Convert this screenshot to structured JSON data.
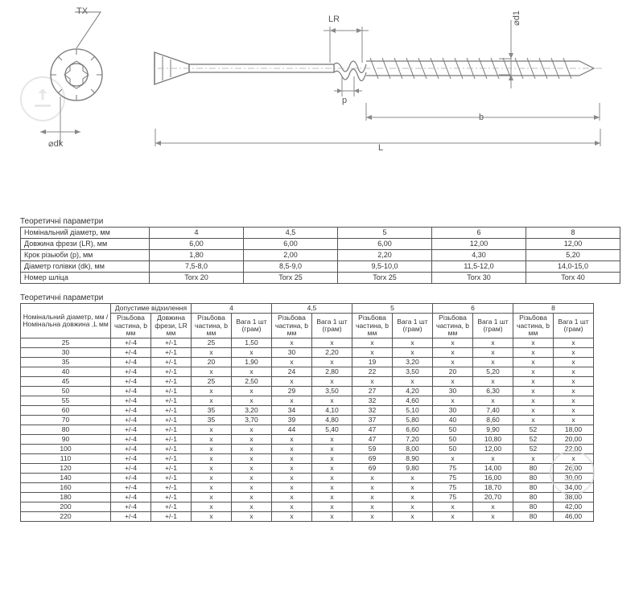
{
  "diagram": {
    "labels": {
      "tx": "TX",
      "lr": "LR",
      "d1": "⌀d1",
      "dk": "⌀dk",
      "p": "p",
      "b": "b",
      "L": "L"
    }
  },
  "table1": {
    "title": "Теоретичні параметри",
    "rows": [
      {
        "label": "Номінальний діаметр, мм",
        "v": [
          "4",
          "4,5",
          "5",
          "6",
          "8"
        ]
      },
      {
        "label": "Довжина фрези (LR), мм",
        "v": [
          "6,00",
          "6,00",
          "6,00",
          "12,00",
          "12,00"
        ]
      },
      {
        "label": "Крок різьюби (p), мм",
        "v": [
          "1,80",
          "2,00",
          "2,20",
          "4,30",
          "5,20"
        ]
      },
      {
        "label": "Діаметр голівки (dk), мм",
        "v": [
          "7,5-8,0",
          "8,5-9,0",
          "9,5-10,0",
          "11,5-12,0",
          "14,0-15,0"
        ]
      },
      {
        "label": "Номер шліца",
        "v": [
          "Torx 20",
          "Torx 25",
          "Torx 25",
          "Torx 30",
          "Torx 40"
        ]
      }
    ]
  },
  "table2": {
    "title": "Теоретичні параметри",
    "header": {
      "nom": "Номінальний діаметр, мм / Номінальна довжина ,L мм",
      "tol_group": "Допустиме відхилення",
      "tol1": "Різьбова частина, b мм",
      "tol2": "Довжина фрези, LR мм",
      "diam_headers": [
        "4",
        "4,5",
        "5",
        "6",
        "8"
      ],
      "sub1": "Різьбова частина, b мм",
      "sub2": "Вага 1 шт (грам)"
    },
    "rows": [
      {
        "l": "25",
        "t": [
          "+/-4",
          "+/-1"
        ],
        "d": [
          [
            "25",
            "1,50"
          ],
          [
            "x",
            "x"
          ],
          [
            "x",
            "x"
          ],
          [
            "x",
            "x"
          ],
          [
            "x",
            "x"
          ]
        ]
      },
      {
        "l": "30",
        "t": [
          "+/-4",
          "+/-1"
        ],
        "d": [
          [
            "x",
            "x"
          ],
          [
            "30",
            "2,20"
          ],
          [
            "x",
            "x"
          ],
          [
            "x",
            "x"
          ],
          [
            "x",
            "x"
          ]
        ]
      },
      {
        "l": "35",
        "t": [
          "+/-4",
          "+/-1"
        ],
        "d": [
          [
            "20",
            "1,90"
          ],
          [
            "x",
            "x"
          ],
          [
            "19",
            "3,20"
          ],
          [
            "x",
            "x"
          ],
          [
            "x",
            "x"
          ]
        ]
      },
      {
        "l": "40",
        "t": [
          "+/-4",
          "+/-1"
        ],
        "d": [
          [
            "x",
            "x"
          ],
          [
            "24",
            "2,80"
          ],
          [
            "22",
            "3,50"
          ],
          [
            "20",
            "5,20"
          ],
          [
            "x",
            "x"
          ]
        ]
      },
      {
        "l": "45",
        "t": [
          "+/-4",
          "+/-1"
        ],
        "d": [
          [
            "25",
            "2,50"
          ],
          [
            "x",
            "x"
          ],
          [
            "x",
            "x"
          ],
          [
            "x",
            "x"
          ],
          [
            "x",
            "x"
          ]
        ]
      },
      {
        "l": "50",
        "t": [
          "+/-4",
          "+/-1"
        ],
        "d": [
          [
            "x",
            "x"
          ],
          [
            "29",
            "3,50"
          ],
          [
            "27",
            "4,20"
          ],
          [
            "30",
            "6,30"
          ],
          [
            "x",
            "x"
          ]
        ]
      },
      {
        "l": "55",
        "t": [
          "+/-4",
          "+/-1"
        ],
        "d": [
          [
            "x",
            "x"
          ],
          [
            "x",
            "x"
          ],
          [
            "32",
            "4,60"
          ],
          [
            "x",
            "x"
          ],
          [
            "x",
            "x"
          ]
        ]
      },
      {
        "l": "60",
        "t": [
          "+/-4",
          "+/-1"
        ],
        "d": [
          [
            "35",
            "3,20"
          ],
          [
            "34",
            "4,10"
          ],
          [
            "32",
            "5,10"
          ],
          [
            "30",
            "7,40"
          ],
          [
            "x",
            "x"
          ]
        ]
      },
      {
        "l": "70",
        "t": [
          "+/-4",
          "+/-1"
        ],
        "d": [
          [
            "35",
            "3,70"
          ],
          [
            "39",
            "4,80"
          ],
          [
            "37",
            "5,80"
          ],
          [
            "40",
            "8,60"
          ],
          [
            "x",
            "x"
          ]
        ]
      },
      {
        "l": "80",
        "t": [
          "+/-4",
          "+/-1"
        ],
        "d": [
          [
            "x",
            "x"
          ],
          [
            "44",
            "5,40"
          ],
          [
            "47",
            "6,60"
          ],
          [
            "50",
            "9,90"
          ],
          [
            "52",
            "18,00"
          ]
        ]
      },
      {
        "l": "90",
        "t": [
          "+/-4",
          "+/-1"
        ],
        "d": [
          [
            "x",
            "x"
          ],
          [
            "x",
            "x"
          ],
          [
            "47",
            "7,20"
          ],
          [
            "50",
            "10,80"
          ],
          [
            "52",
            "20,00"
          ]
        ]
      },
      {
        "l": "100",
        "t": [
          "+/-4",
          "+/-1"
        ],
        "d": [
          [
            "x",
            "x"
          ],
          [
            "x",
            "x"
          ],
          [
            "59",
            "8,00"
          ],
          [
            "50",
            "12,00"
          ],
          [
            "52",
            "22,00"
          ]
        ]
      },
      {
        "l": "110",
        "t": [
          "+/-4",
          "+/-1"
        ],
        "d": [
          [
            "x",
            "x"
          ],
          [
            "x",
            "x"
          ],
          [
            "69",
            "8,90"
          ],
          [
            "x",
            "x"
          ],
          [
            "x",
            "x"
          ]
        ]
      },
      {
        "l": "120",
        "t": [
          "+/-4",
          "+/-1"
        ],
        "d": [
          [
            "x",
            "x"
          ],
          [
            "x",
            "x"
          ],
          [
            "69",
            "9,80"
          ],
          [
            "75",
            "14,00"
          ],
          [
            "80",
            "26,00"
          ]
        ]
      },
      {
        "l": "140",
        "t": [
          "+/-4",
          "+/-1"
        ],
        "d": [
          [
            "x",
            "x"
          ],
          [
            "x",
            "x"
          ],
          [
            "x",
            "x"
          ],
          [
            "75",
            "16,00"
          ],
          [
            "80",
            "30,00"
          ]
        ]
      },
      {
        "l": "160",
        "t": [
          "+/-4",
          "+/-1"
        ],
        "d": [
          [
            "x",
            "x"
          ],
          [
            "x",
            "x"
          ],
          [
            "x",
            "x"
          ],
          [
            "75",
            "18,70"
          ],
          [
            "80",
            "34,00"
          ]
        ]
      },
      {
        "l": "180",
        "t": [
          "+/-4",
          "+/-1"
        ],
        "d": [
          [
            "x",
            "x"
          ],
          [
            "x",
            "x"
          ],
          [
            "x",
            "x"
          ],
          [
            "75",
            "20,70"
          ],
          [
            "80",
            "38,00"
          ]
        ]
      },
      {
        "l": "200",
        "t": [
          "+/-4",
          "+/-1"
        ],
        "d": [
          [
            "x",
            "x"
          ],
          [
            "x",
            "x"
          ],
          [
            "x",
            "x"
          ],
          [
            "x",
            "x"
          ],
          [
            "80",
            "42,00"
          ]
        ]
      },
      {
        "l": "220",
        "t": [
          "+/-4",
          "+/-1"
        ],
        "d": [
          [
            "x",
            "x"
          ],
          [
            "x",
            "x"
          ],
          [
            "x",
            "x"
          ],
          [
            "x",
            "x"
          ],
          [
            "80",
            "46,00"
          ]
        ]
      }
    ]
  }
}
